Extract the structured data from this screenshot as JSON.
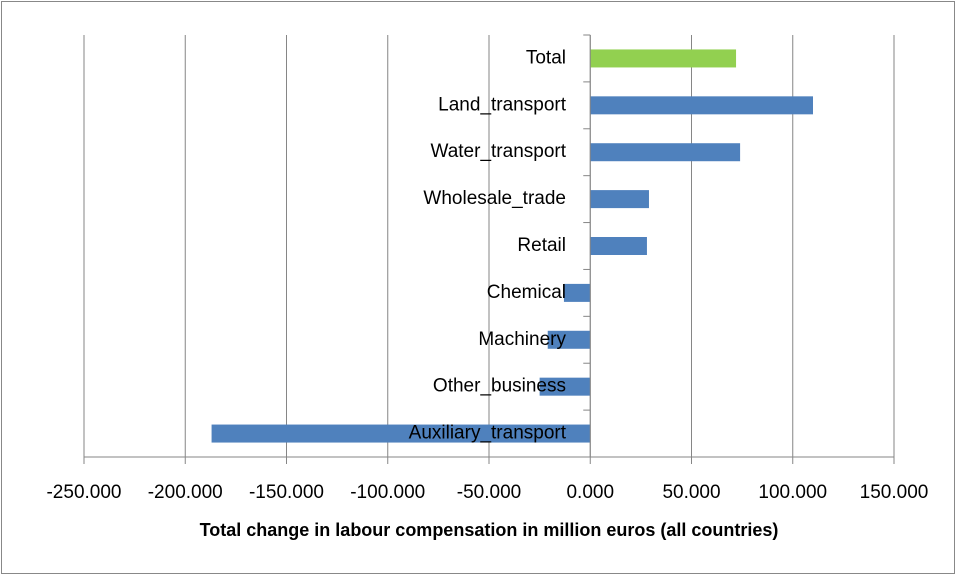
{
  "chart_data": {
    "type": "barh",
    "categories": [
      "Total",
      "Land_transport",
      "Water_transport",
      "Wholesale_trade",
      "Retail",
      "Chemical",
      "Machinery",
      "Other_business",
      "Auxiliary_transport"
    ],
    "values": [
      72,
      110,
      74,
      29,
      28,
      -13,
      -21,
      -25,
      -187
    ],
    "colors": [
      "#92d050",
      "#4f81bd",
      "#4f81bd",
      "#4f81bd",
      "#4f81bd",
      "#4f81bd",
      "#4f81bd",
      "#4f81bd",
      "#4f81bd"
    ],
    "x_label": "Total change in labour compensation in million euros (all countries)",
    "xlim": [
      -250,
      150
    ],
    "xticks": [
      {
        "value": -250,
        "label": "-250.000"
      },
      {
        "value": -200,
        "label": "-200.000"
      },
      {
        "value": -150,
        "label": "-150.000"
      },
      {
        "value": -100,
        "label": "-100.000"
      },
      {
        "value": -50,
        "label": "-50.000"
      },
      {
        "value": 0,
        "label": "0.000"
      },
      {
        "value": 50,
        "label": "50.000"
      },
      {
        "value": 100,
        "label": "100.000"
      },
      {
        "value": 150,
        "label": "150.000"
      }
    ],
    "grid": true
  }
}
